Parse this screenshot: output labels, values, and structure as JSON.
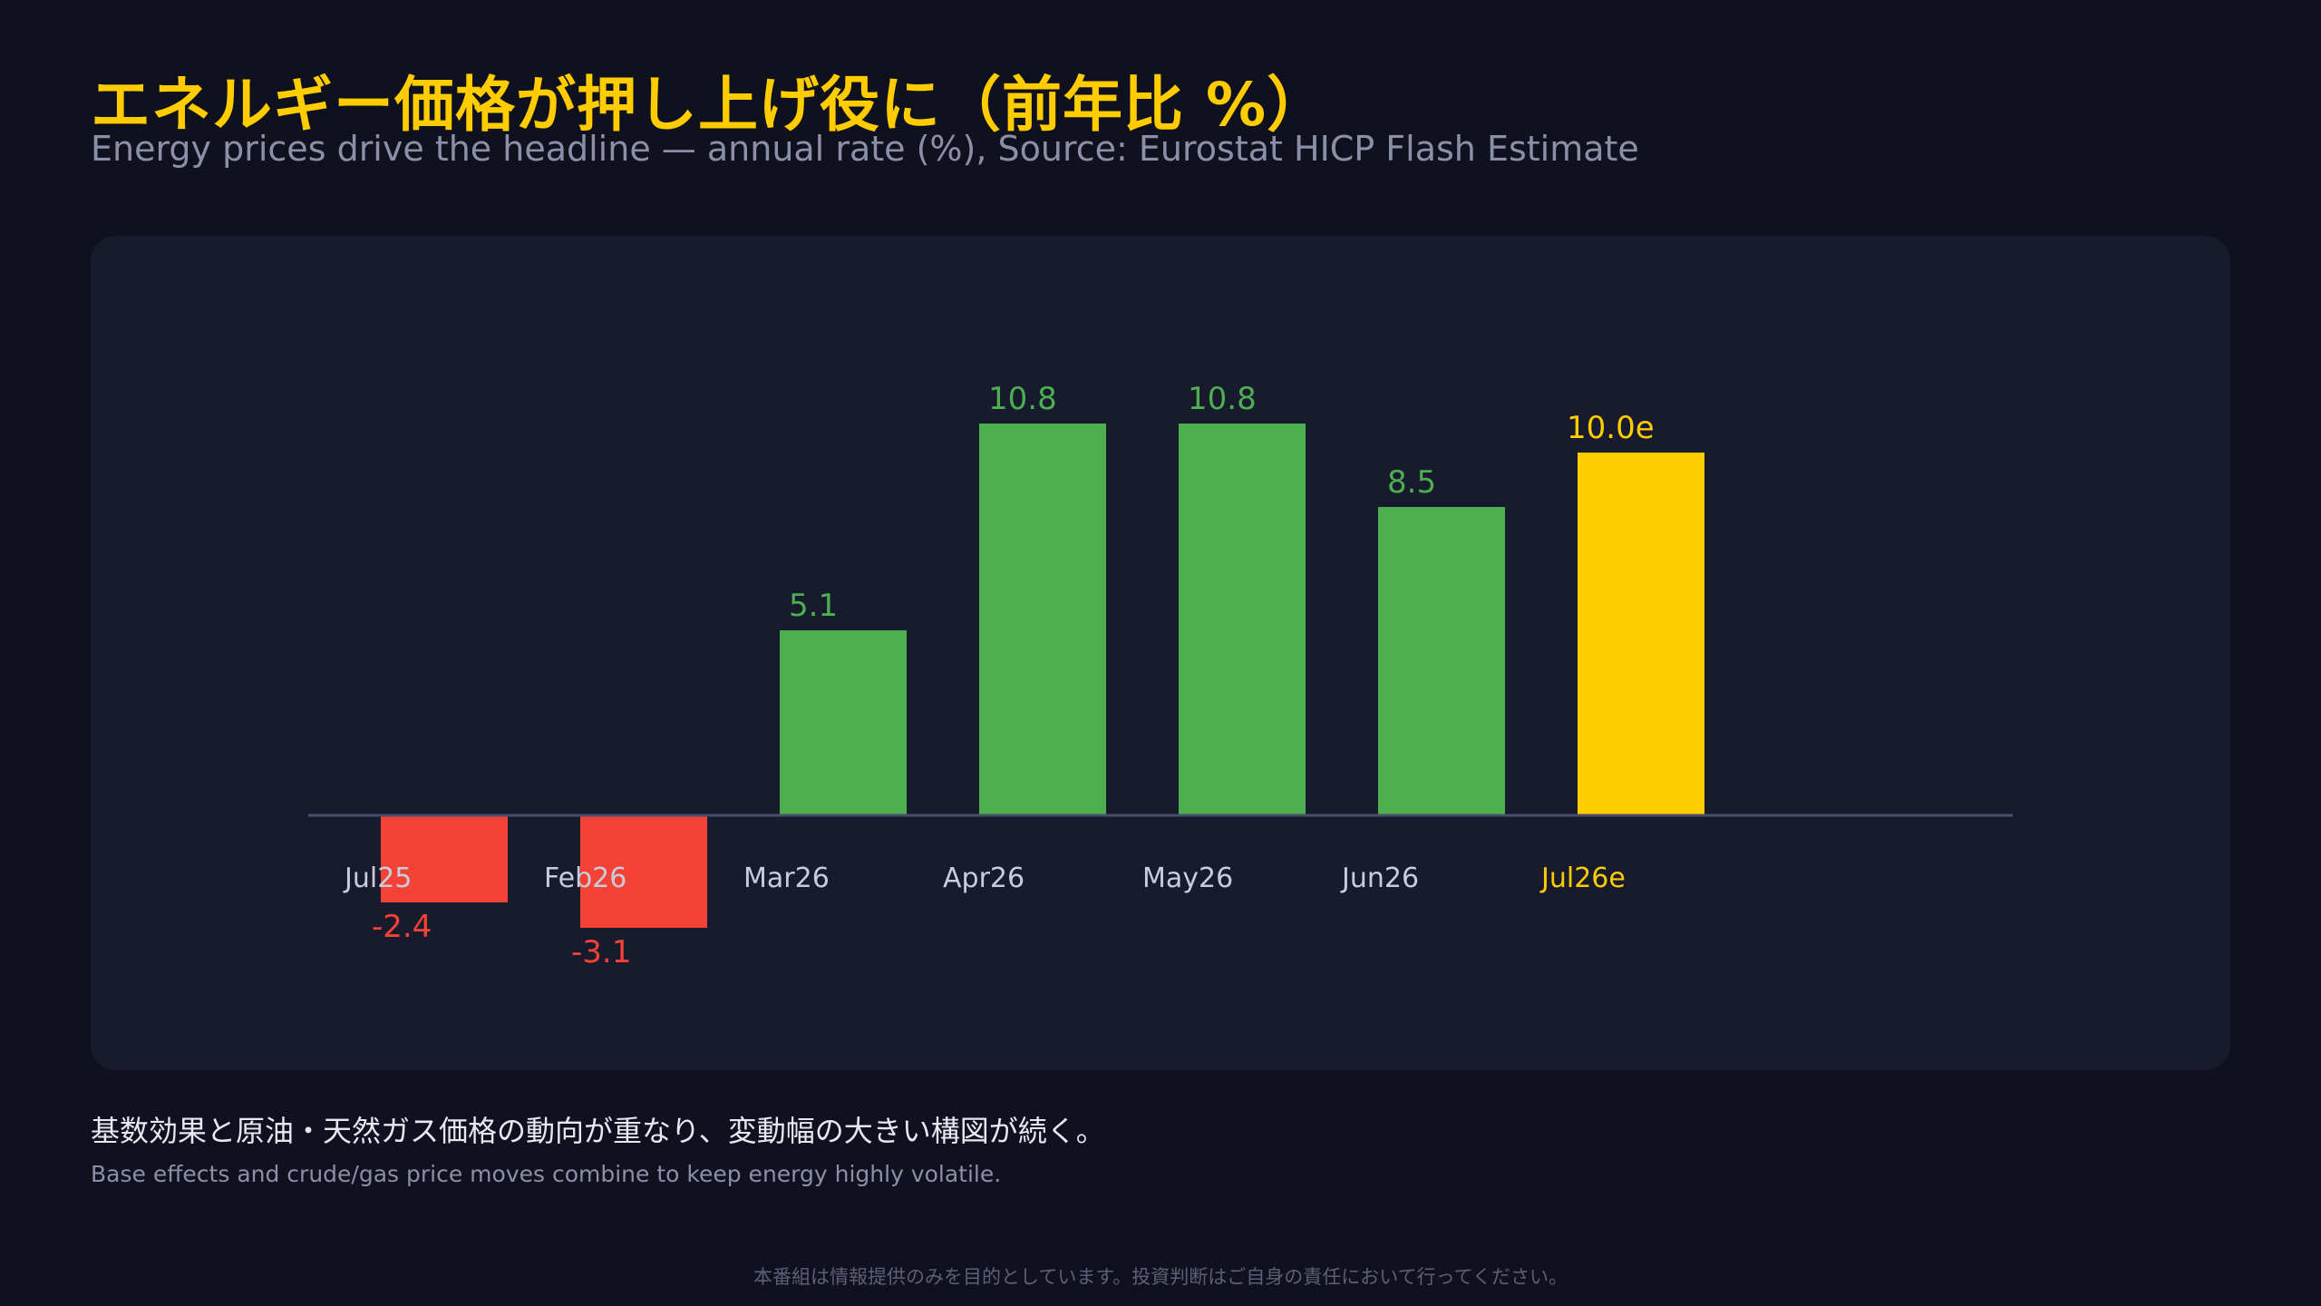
{
  "header": {
    "title": "エネルギー価格が押し上げ役に（前年比 %）",
    "subtitle": "Energy prices drive the headline — annual rate (%), Source: Eurostat HICP Flash Estimate"
  },
  "chart_data": {
    "type": "bar",
    "categories": [
      "Jul25",
      "Feb26",
      "Mar26",
      "Apr26",
      "May26",
      "Jun26",
      "Jul26e"
    ],
    "values": [
      -2.4,
      -3.1,
      5.1,
      10.8,
      10.8,
      8.5,
      10.0
    ],
    "value_labels": [
      "-2.4",
      "-3.1",
      "5.1",
      "10.8",
      "10.8",
      "8.5",
      "10.0e"
    ],
    "estimate_index": 6,
    "colors": {
      "positive": "#4caf50",
      "negative": "#f44336",
      "estimate": "#ffcc00",
      "category_text": "#c9ccda",
      "baseline": "#4a4d6a"
    },
    "title": "",
    "xlabel": "",
    "ylabel": "",
    "grid": false
  },
  "notes": {
    "jp": "基数効果と原油・天然ガス価格の動向が重なり、変動幅の大きい構図が続く。",
    "en": "Base effects and crude/gas price moves combine to keep energy highly volatile."
  },
  "footer": {
    "disclaimer": "本番組は情報提供のみを目的としています。投資判断はご自身の責任において行ってください。"
  }
}
